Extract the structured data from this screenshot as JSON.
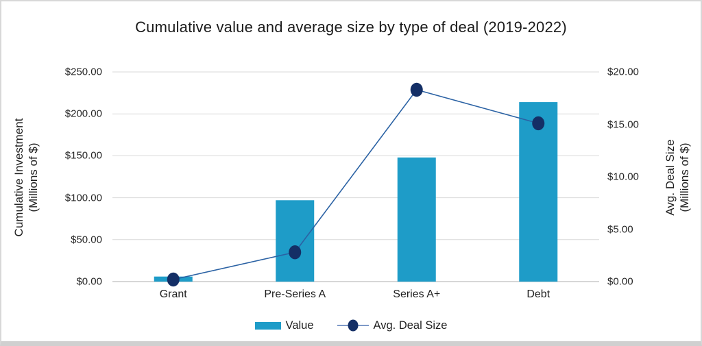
{
  "title": "Cumulative value and average size by type of deal (2019-2022)",
  "axes": {
    "left": {
      "title_line1": "Cumulative Investment",
      "title_line2": "(Millions of $)"
    },
    "right": {
      "title_line1": "Avg. Deal Size",
      "title_line2": "(Millions of $)"
    }
  },
  "legend": {
    "items": [
      {
        "label": "Value",
        "swatch": "bar"
      },
      {
        "label": "Avg. Deal Size",
        "swatch": "line-marker"
      }
    ]
  },
  "colors": {
    "bar": "#1e9cc8",
    "line": "#2b62a4",
    "marker": "#142f66",
    "legend_line": "#7e99c8",
    "grid": "#d9d9d9",
    "axis_line": "#bfbfbf",
    "text": "#1f1f1f"
  },
  "chart_data": {
    "type": "combo",
    "title": "Cumulative value and average size by type of deal (2019-2022)",
    "categories": [
      "Grant",
      "Pre-Series A",
      "Series A+",
      "Debt"
    ],
    "series": [
      {
        "name": "Value",
        "type": "bar",
        "axis": "left",
        "values": [
          6,
          97,
          148,
          214
        ]
      },
      {
        "name": "Avg. Deal Size",
        "type": "line",
        "axis": "right",
        "values": [
          0.2,
          2.8,
          18.3,
          15.1
        ]
      }
    ],
    "axis_left": {
      "label": "Cumulative Investment (Millions of $)",
      "ticks": [
        "$0.00",
        "$50.00",
        "$100.00",
        "$150.00",
        "$200.00",
        "$250.00"
      ],
      "tick_values": [
        0,
        50,
        100,
        150,
        200,
        250
      ],
      "range": [
        0,
        250
      ]
    },
    "axis_right": {
      "label": "Avg. Deal Size (Millions of $)",
      "ticks": [
        "$0.00",
        "$5.00",
        "$10.00",
        "$15.00",
        "$20.00"
      ],
      "tick_values": [
        0,
        5,
        10,
        15,
        20
      ],
      "range": [
        0,
        20
      ]
    },
    "xlabel": "",
    "grid": true,
    "legend_position": "bottom"
  }
}
